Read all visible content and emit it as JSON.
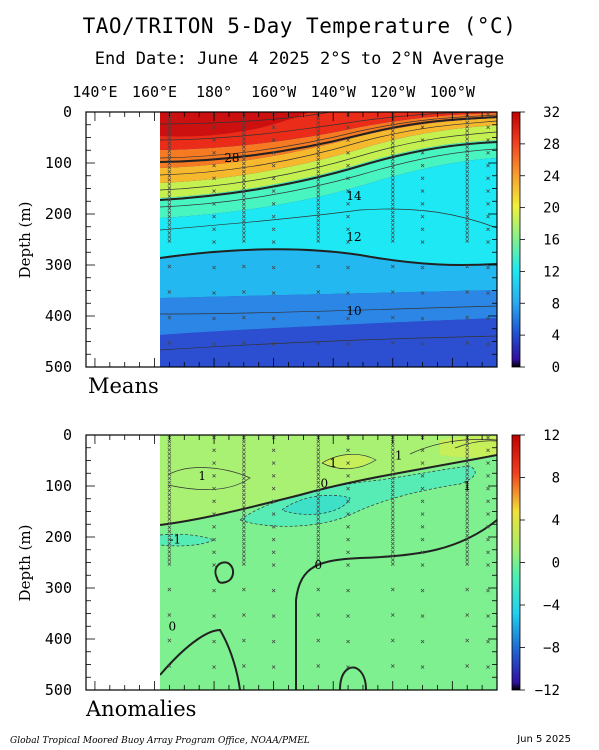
{
  "title": "TAO/TRITON 5-Day Temperature (°C)",
  "subtitle": "End Date: June 4 2025  2°S to 2°N Average",
  "footer_left": "Global Tropical Moored Buoy Array Program Office, NOAA/PMEL",
  "footer_right": "Jun  5 2025",
  "colors": {
    "means_ramp": [
      "#2d1fa8",
      "#2b63d8",
      "#2f9bef",
      "#1fd0f2",
      "#1ff0e6",
      "#5bf5b0",
      "#9ef377",
      "#e3f03f",
      "#f7c02c",
      "#f67f25",
      "#ee3a1c",
      "#d41313"
    ],
    "anom_fill": "#7ef08f",
    "contour": "#333333"
  },
  "chart_data": [
    {
      "type": "heatmap",
      "label": "Means",
      "ylabel": "Depth (m)",
      "x_tick_labels": [
        "140°E",
        "160°E",
        "180°",
        "160°W",
        "140°W",
        "120°W",
        "100°W"
      ],
      "x_ticks_deg": [
        140,
        160,
        180,
        200,
        220,
        240,
        260
      ],
      "xlim_deg": [
        137,
        275
      ],
      "data_start_deg": 158,
      "y_tick_labels": [
        "0",
        "100",
        "200",
        "300",
        "400",
        "500"
      ],
      "y_ticks": [
        0,
        100,
        200,
        300,
        400,
        500
      ],
      "ylim": [
        0,
        500
      ],
      "colorbar_ticks": [
        "32",
        "28",
        "24",
        "20",
        "16",
        "12",
        "8",
        "4",
        "0"
      ],
      "colorbar_range": [
        0,
        32
      ],
      "contour_labels": [
        {
          "text": "28",
          "lon": 186,
          "depth": 90
        },
        {
          "text": "14",
          "lon": 227,
          "depth": 165
        },
        {
          "text": "12",
          "lon": 227,
          "depth": 245
        },
        {
          "text": "10",
          "lon": 227,
          "depth": 390
        }
      ],
      "isotherms": [
        {
          "value": 28,
          "lon": [
            158,
            180,
            200,
            220,
            240,
            260,
            272
          ],
          "depth": [
            100,
            95,
            75,
            45,
            25,
            15,
            10
          ]
        },
        {
          "value": 20,
          "lon": [
            158,
            180,
            200,
            220,
            240,
            260,
            272
          ],
          "depth": [
            170,
            160,
            140,
            110,
            85,
            65,
            55
          ]
        },
        {
          "value": 14,
          "lon": [
            158,
            180,
            200,
            220,
            240,
            260,
            272
          ],
          "depth": [
            210,
            200,
            185,
            155,
            125,
            105,
            100
          ]
        },
        {
          "value": 12,
          "lon": [
            158,
            175,
            195,
            215,
            235,
            255,
            272
          ],
          "depth": [
            280,
            265,
            255,
            260,
            290,
            300,
            300
          ]
        },
        {
          "value": 10,
          "lon": [
            158,
            180,
            200,
            220,
            240,
            260,
            272
          ],
          "depth": [
            400,
            395,
            385,
            380,
            375,
            370,
            365
          ]
        }
      ]
    },
    {
      "type": "heatmap",
      "label": "Anomalies",
      "ylabel": "Depth (m)",
      "y_tick_labels": [
        "0",
        "100",
        "200",
        "300",
        "400",
        "500"
      ],
      "y_ticks": [
        0,
        100,
        200,
        300,
        400,
        500
      ],
      "ylim": [
        0,
        500
      ],
      "colorbar_ticks": [
        "12",
        "8",
        "4",
        "0",
        "−4",
        "−8",
        "−12"
      ],
      "colorbar_range": [
        -12,
        12
      ],
      "contour_labels": [
        {
          "text": "1",
          "lon": 176,
          "depth": 80
        },
        {
          "text": "1",
          "lon": 220,
          "depth": 55
        },
        {
          "text": "1",
          "lon": 242,
          "depth": 40
        },
        {
          "text": "0",
          "lon": 217,
          "depth": 95
        },
        {
          "text": "1",
          "lon": 265,
          "depth": 100
        },
        {
          "text": "-1",
          "lon": 167,
          "depth": 205
        },
        {
          "text": "0",
          "lon": 215,
          "depth": 255
        },
        {
          "text": "0",
          "lon": 166,
          "depth": 375
        }
      ]
    }
  ]
}
